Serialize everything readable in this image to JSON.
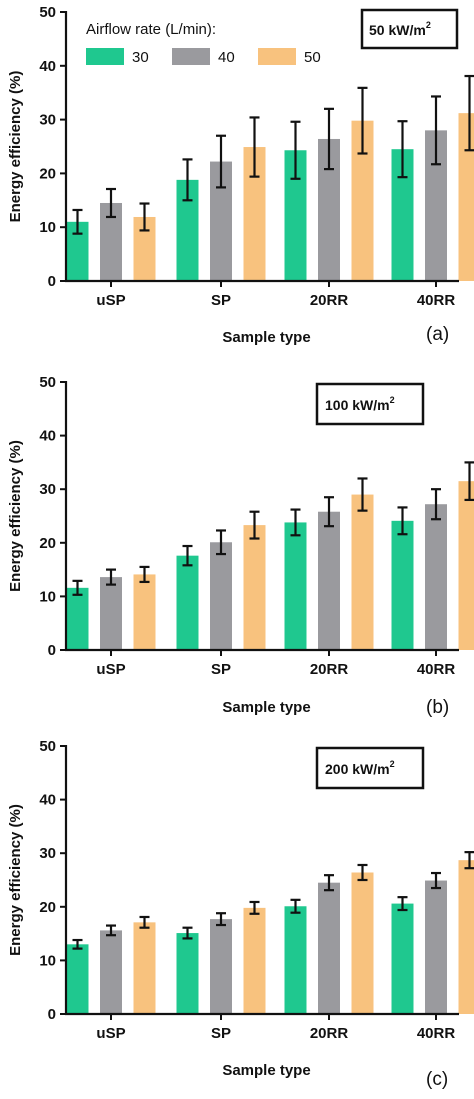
{
  "legend": {
    "title": "Airflow rate (L/min):",
    "entries": [
      "30",
      "40",
      "50"
    ]
  },
  "colors": {
    "s30": "#1fc88f",
    "s40": "#9a9a9e",
    "s50": "#f8c27e",
    "axis": "#111111"
  },
  "chart_data": [
    {
      "type": "bar",
      "panel_label": "(a)",
      "heat_flux": {
        "base": "50 kW/m",
        "sup": "2"
      },
      "xlabel": "Sample type",
      "ylabel": "Energy efficiency (%)",
      "ylim": [
        0,
        50
      ],
      "yticks": [
        0,
        10,
        20,
        30,
        40,
        50
      ],
      "categories": [
        "uSP",
        "SP",
        "20RR",
        "40RR"
      ],
      "series": [
        {
          "name": "30",
          "values": [
            11.0,
            18.8,
            24.3,
            24.5
          ],
          "errors": [
            2.2,
            3.8,
            5.3,
            5.2
          ]
        },
        {
          "name": "40",
          "values": [
            14.5,
            22.2,
            26.4,
            28.0
          ],
          "errors": [
            2.6,
            4.8,
            5.6,
            6.3
          ]
        },
        {
          "name": "50",
          "values": [
            11.9,
            24.9,
            29.8,
            31.2
          ],
          "errors": [
            2.5,
            5.5,
            6.1,
            6.9
          ]
        }
      ]
    },
    {
      "type": "bar",
      "panel_label": "(b)",
      "heat_flux": {
        "base": "100 kW/m",
        "sup": "2"
      },
      "xlabel": "Sample type",
      "ylabel": "Energy efficiency (%)",
      "ylim": [
        0,
        50
      ],
      "yticks": [
        0,
        10,
        20,
        30,
        40,
        50
      ],
      "categories": [
        "uSP",
        "SP",
        "20RR",
        "40RR"
      ],
      "series": [
        {
          "name": "30",
          "values": [
            11.6,
            17.6,
            23.8,
            24.1
          ],
          "errors": [
            1.3,
            1.8,
            2.4,
            2.5
          ]
        },
        {
          "name": "40",
          "values": [
            13.6,
            20.1,
            25.8,
            27.2
          ],
          "errors": [
            1.4,
            2.2,
            2.7,
            2.8
          ]
        },
        {
          "name": "50",
          "values": [
            14.1,
            23.3,
            29.0,
            31.5
          ],
          "errors": [
            1.4,
            2.5,
            3.0,
            3.5
          ]
        }
      ]
    },
    {
      "type": "bar",
      "panel_label": "(c)",
      "heat_flux": {
        "base": "200 kW/m",
        "sup": "2"
      },
      "xlabel": "Sample type",
      "ylabel": "Energy efficiency (%)",
      "ylim": [
        0,
        50
      ],
      "yticks": [
        0,
        10,
        20,
        30,
        40,
        50
      ],
      "categories": [
        "uSP",
        "SP",
        "20RR",
        "40RR"
      ],
      "series": [
        {
          "name": "30",
          "values": [
            13.0,
            15.1,
            20.1,
            20.6
          ],
          "errors": [
            0.8,
            1.0,
            1.2,
            1.2
          ]
        },
        {
          "name": "40",
          "values": [
            15.6,
            17.7,
            24.5,
            24.9
          ],
          "errors": [
            0.9,
            1.1,
            1.4,
            1.4
          ]
        },
        {
          "name": "50",
          "values": [
            17.1,
            19.8,
            26.4,
            28.7
          ],
          "errors": [
            1.0,
            1.1,
            1.4,
            1.5
          ]
        }
      ]
    }
  ]
}
